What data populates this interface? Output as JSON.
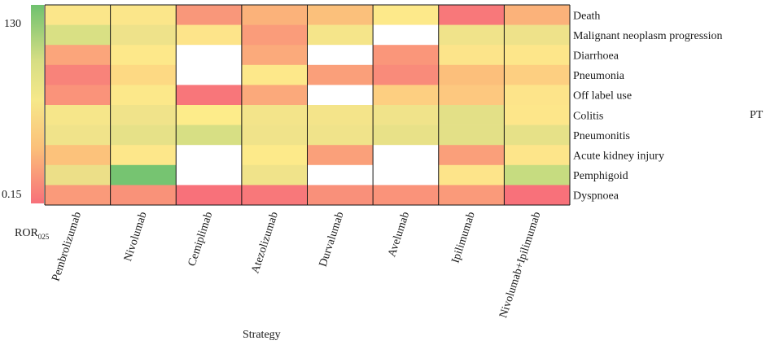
{
  "chart_data": {
    "type": "heatmap",
    "xlabel": "Strategy",
    "ylabel": "PT",
    "legend": {
      "title": "ROR",
      "title_subscript": "025",
      "max_label": "130",
      "min_label": "0.15",
      "placement": "left"
    },
    "strategies": [
      "Pembrolizumab",
      "Nivolumab",
      "Cemiplimab",
      "Atezolizumab",
      "Durvalumab",
      "Avelumab",
      "Ipilimumab",
      "Nivolumab+Ipilimumab"
    ],
    "pts": [
      "Death",
      "Malignant neoplasm progression",
      "Diarrhoea",
      "Pneumonia",
      "Off label use",
      "Colitis",
      "Pneumonitis",
      "Acute kidney injury",
      "Pemphigoid",
      "Dyspnoea"
    ],
    "cell_colors": [
      [
        "#fbe68a",
        "#fbe68a",
        "#f9977a",
        "#fbb27a",
        "#fbc07b",
        "#fde98a",
        "#f8787a",
        "#fbb27a"
      ],
      [
        "#d9e084",
        "#eee28a",
        "#fde48a",
        "#fa9c7a",
        "#f5e58a",
        null,
        "#f0e38a",
        "#eee28a"
      ],
      [
        "#fba57b",
        "#fde88a",
        null,
        "#fbaa7b",
        null,
        "#fa967a",
        "#fce48a",
        "#fde68a"
      ],
      [
        "#f8837a",
        "#fdd983",
        null,
        "#fde88a",
        "#fa9f7a",
        "#f98b7a",
        "#fcbf7b",
        "#fdcf81"
      ],
      [
        "#fa937a",
        "#fce88a",
        "#f8767a",
        "#fba97b",
        null,
        "#fdcf81",
        "#fdc87f",
        "#fde48a"
      ],
      [
        "#f6e68a",
        "#f0e38a",
        "#fdec8a",
        "#f3e48a",
        "#f4e48a",
        "#f0e38a",
        "#e3e087",
        "#fde68a"
      ],
      [
        "#f0e38a",
        "#e6e188",
        "#d7df84",
        "#f0e38a",
        "#f0e38a",
        "#e8e188",
        "#e3e087",
        "#e6e188"
      ],
      [
        "#fcc27b",
        "#fde78a",
        null,
        "#fdea8a",
        "#faa07a",
        null,
        "#fa9f7a",
        "#fde58a"
      ],
      [
        "#ecdf88",
        "#76c471",
        null,
        "#f0e38a",
        null,
        null,
        "#fde48a",
        "#c6dc80"
      ],
      [
        "#fa9a7a",
        "#f99279",
        "#f8717a",
        "#f8787a",
        "#f9907a",
        "#fa937a",
        "#fa9a7a",
        "#f8717a"
      ]
    ]
  }
}
